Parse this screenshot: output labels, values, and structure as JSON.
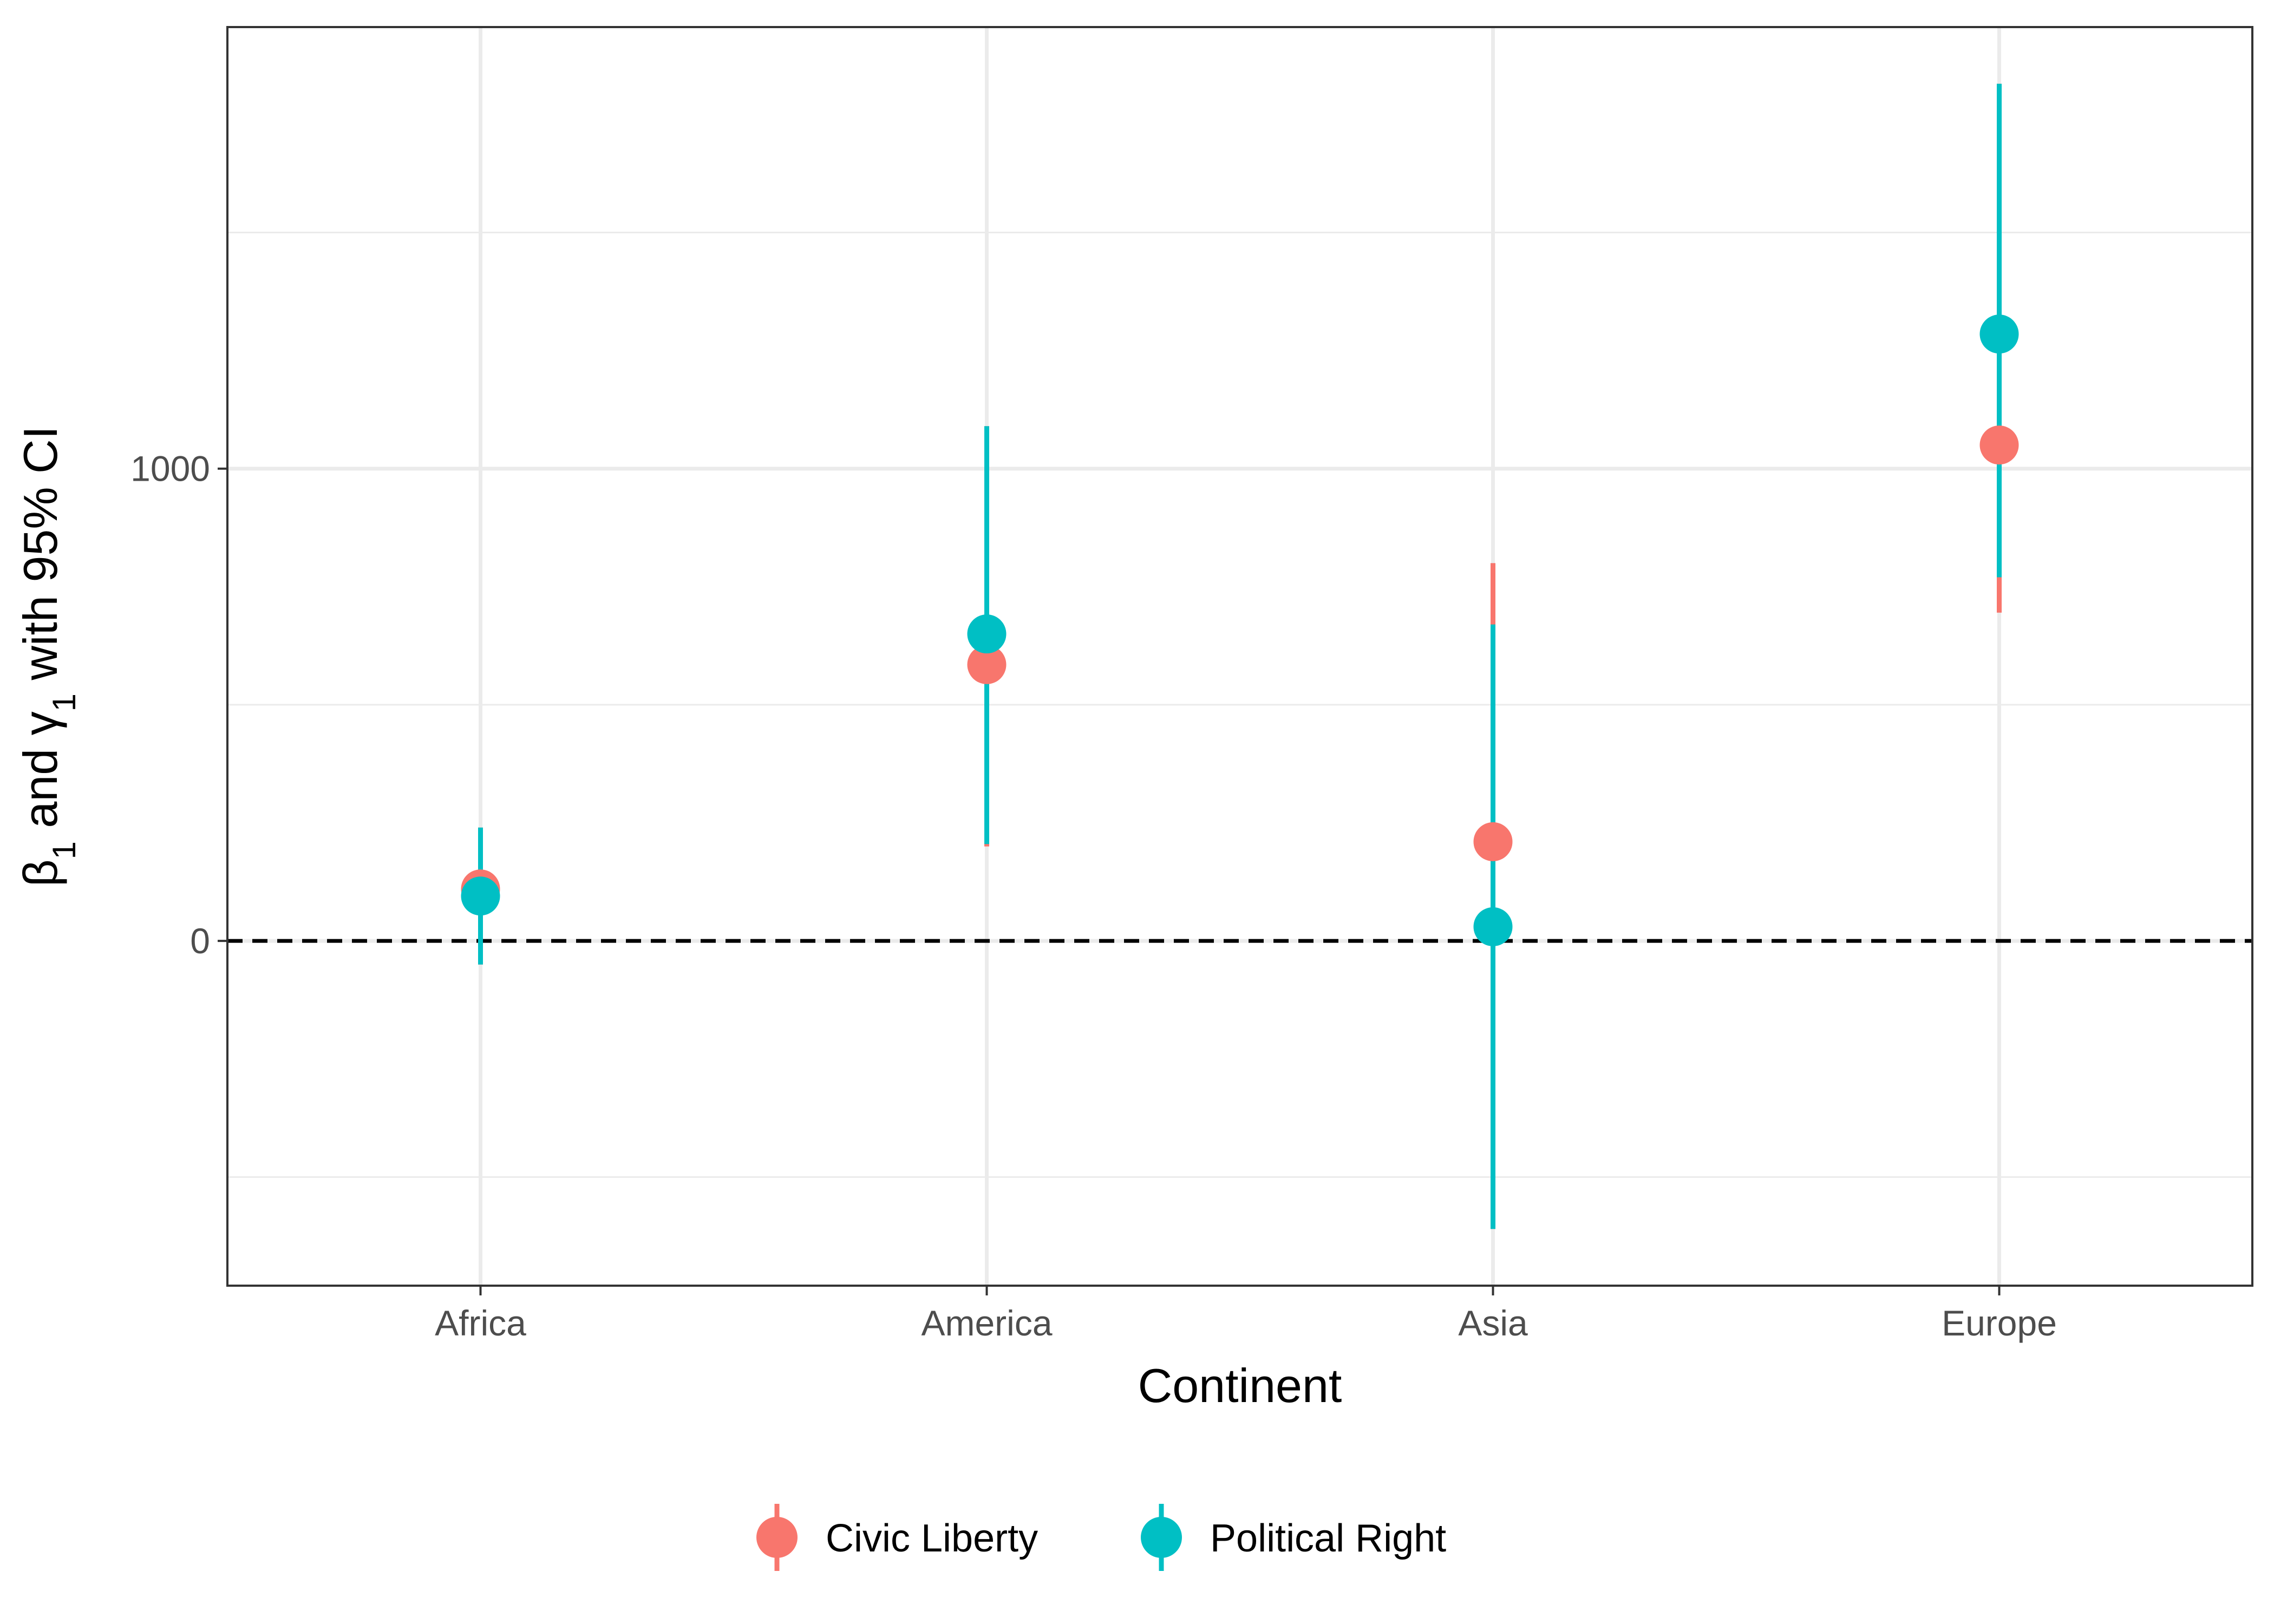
{
  "chart_data": {
    "type": "scatter",
    "subtype": "point-range",
    "categories": [
      "Africa",
      "America",
      "Asia",
      "Europe"
    ],
    "series": [
      {
        "name": "Civic Liberty",
        "color": "#F8766D",
        "values": [
          110,
          585,
          210,
          1050
        ],
        "lower": [
          -50,
          200,
          -610,
          695
        ],
        "upper": [
          240,
          1090,
          800,
          1815
        ]
      },
      {
        "name": "Political Right",
        "color": "#00BFC4",
        "values": [
          95,
          650,
          30,
          1285
        ],
        "lower": [
          -50,
          205,
          -610,
          770
        ],
        "upper": [
          240,
          1090,
          670,
          1815
        ]
      }
    ],
    "xlabel": "Continent",
    "ylabel": {
      "parts": [
        {
          "text": "β",
          "sub": false
        },
        {
          "text": "1",
          "sub": true
        },
        {
          "text": " and ",
          "sub": false
        },
        {
          "text": "γ",
          "sub": false
        },
        {
          "text": "1",
          "sub": true
        },
        {
          "text": " with 95% CI",
          "sub": false
        }
      ]
    },
    "ylim": [
      -730,
      1935
    ],
    "yticks": [
      0,
      1000
    ],
    "y_minor_gridlines": [
      -500,
      500,
      1500
    ],
    "reference_line": {
      "y": 0,
      "style": "dashed",
      "color": "#000000"
    },
    "grid": true,
    "legend_position": "bottom"
  }
}
